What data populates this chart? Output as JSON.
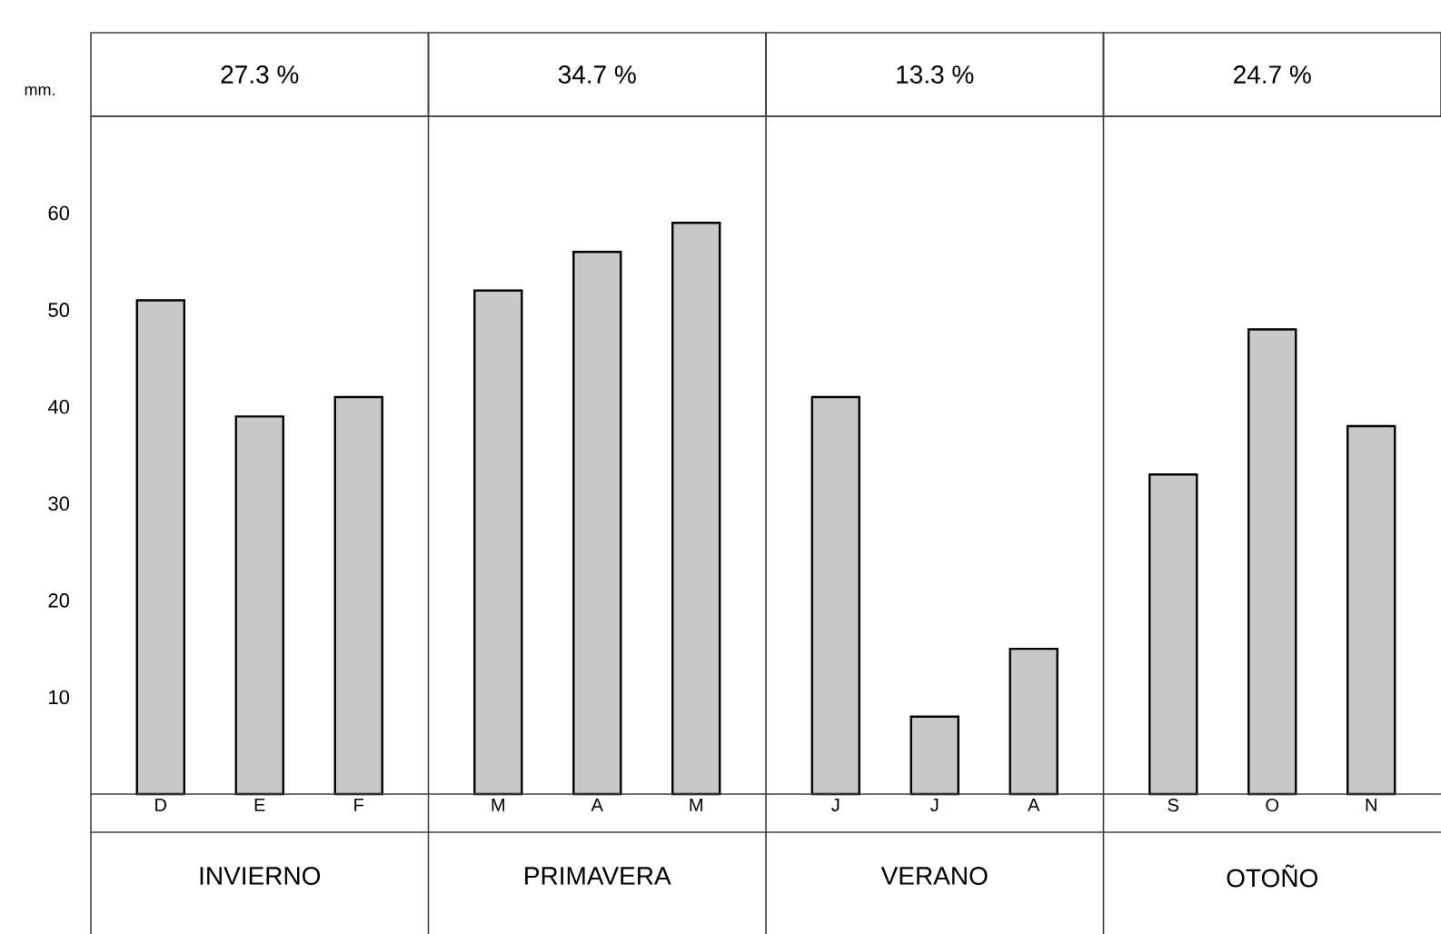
{
  "chart_data": {
    "type": "bar",
    "ylabel": "mm.",
    "categories": [
      "D",
      "E",
      "F",
      "M",
      "A",
      "M",
      "J",
      "J",
      "A",
      "S",
      "O",
      "N"
    ],
    "values": [
      51,
      39,
      41,
      52,
      56,
      59,
      41,
      8,
      15,
      33,
      48,
      38
    ],
    "color": "#c8c8c8",
    "ylim": [
      0,
      70
    ],
    "yticks": [
      10,
      20,
      30,
      40,
      50,
      60
    ],
    "annotations": [
      "27.3 %",
      "34.7 %",
      "13.3 %",
      "24.7 %",
      "INVIERNO",
      "PRIMAVERA",
      "VERANO",
      "OTOÑO"
    ]
  }
}
